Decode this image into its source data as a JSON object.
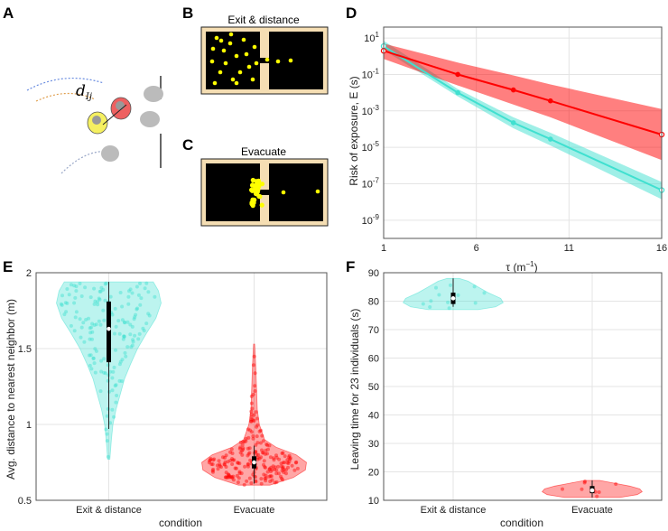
{
  "figure": {
    "panel_labels": {
      "A": "A",
      "B": "B",
      "C": "C",
      "D": "D",
      "E": "E",
      "F": "F"
    },
    "colors": {
      "exit": "#40E0D0",
      "evac": "#FF0000",
      "arena_floor": "#000000",
      "arena_wall": "#F5DEB3",
      "agent": "#FFFF00"
    },
    "panel_a": {
      "distance_label_main": "d",
      "distance_label_sub": "Ij"
    },
    "panel_b": {
      "title": "Exit & distance"
    },
    "panel_c": {
      "title": "Evacuate"
    }
  },
  "chart_data": [
    {
      "id": "D",
      "type": "line",
      "ylog": true,
      "xlabel_main": "τ (m",
      "xlabel_sup": "−1",
      "xlabel_end": ")",
      "ylabel": "Risk of exposure, E (s)",
      "xlim": [
        1,
        16
      ],
      "xticks": [
        1,
        6,
        11,
        16
      ],
      "ylim_exp": [
        -10,
        1.6
      ],
      "yticks_exp": [
        1,
        -1,
        -3,
        -5,
        -7,
        -9
      ],
      "ytick_base": "10",
      "series": [
        {
          "name": "Exit & distance",
          "color": "#40E0D0",
          "x": [
            1,
            5,
            8,
            10,
            16
          ],
          "log10_mean": [
            0.55,
            -2.0,
            -3.65,
            -4.55,
            -7.35
          ],
          "log10_lower": [
            0.35,
            -2.2,
            -3.95,
            -4.9,
            -7.85
          ],
          "log10_upper": [
            0.85,
            -1.8,
            -3.35,
            -4.2,
            -6.9
          ]
        },
        {
          "name": "Evacuate",
          "color": "#FF0000",
          "x": [
            1,
            5,
            8,
            10,
            16
          ],
          "log10_mean": [
            0.3,
            -1.0,
            -1.85,
            -2.45,
            -4.3
          ],
          "log10_lower": [
            -0.15,
            -1.6,
            -2.65,
            -3.35,
            -5.7
          ],
          "log10_upper": [
            0.7,
            -0.35,
            -1.05,
            -1.55,
            -2.9
          ]
        }
      ]
    },
    {
      "id": "E",
      "type": "violin",
      "xlabel": "condition",
      "ylabel": "Avg. distance to nearest neighbor (m)",
      "ylim": [
        0.5,
        2.0
      ],
      "yticks": [
        0.5,
        1,
        1.5,
        2
      ],
      "ytick_labels": [
        "0.5",
        "1",
        "1.5",
        "2"
      ],
      "categories": [
        "Exit & distance",
        "Evacuate"
      ],
      "groups": [
        {
          "name": "Exit & distance",
          "color": "#40E0D0",
          "median": 1.63,
          "q1": 1.41,
          "q3": 1.81,
          "min": 0.77,
          "max": 1.94,
          "whisker_min": 0.97,
          "whisker_max": 1.94,
          "n_points": 160,
          "density": [
            [
              0.77,
              0.02
            ],
            [
              0.9,
              0.05
            ],
            [
              1.0,
              0.08
            ],
            [
              1.1,
              0.14
            ],
            [
              1.2,
              0.22
            ],
            [
              1.3,
              0.3
            ],
            [
              1.4,
              0.42
            ],
            [
              1.5,
              0.55
            ],
            [
              1.6,
              0.72
            ],
            [
              1.7,
              0.9
            ],
            [
              1.8,
              1.0
            ],
            [
              1.88,
              0.95
            ],
            [
              1.94,
              0.85
            ]
          ]
        },
        {
          "name": "Evacuate",
          "color": "#FF0000",
          "median": 0.75,
          "q1": 0.71,
          "q3": 0.79,
          "min": 0.6,
          "max": 1.53,
          "whisker_min": 0.61,
          "whisker_max": 0.86,
          "n_points": 220,
          "density": [
            [
              0.6,
              0.3
            ],
            [
              0.65,
              0.75
            ],
            [
              0.7,
              0.98
            ],
            [
              0.75,
              1.0
            ],
            [
              0.8,
              0.8
            ],
            [
              0.85,
              0.42
            ],
            [
              0.9,
              0.2
            ],
            [
              1.0,
              0.1
            ],
            [
              1.1,
              0.06
            ],
            [
              1.2,
              0.05
            ],
            [
              1.3,
              0.04
            ],
            [
              1.4,
              0.03
            ],
            [
              1.53,
              0.01
            ]
          ]
        }
      ]
    },
    {
      "id": "F",
      "type": "violin",
      "xlabel": "condition",
      "ylabel": "Leaving time for 23 individuals (s)",
      "ylim": [
        10,
        90
      ],
      "yticks": [
        10,
        20,
        30,
        40,
        50,
        60,
        70,
        80,
        90
      ],
      "ytick_labels": [
        "10",
        "20",
        "30",
        "40",
        "50",
        "60",
        "70",
        "80",
        "90"
      ],
      "categories": [
        "Exit & distance",
        "Evacuate"
      ],
      "groups": [
        {
          "name": "Exit & distance",
          "color": "#40E0D0",
          "median": 81,
          "q1": 79,
          "q3": 83,
          "min": 77,
          "max": 88,
          "whisker_min": 78,
          "whisker_max": 88,
          "n_points": 12,
          "density": [
            [
              77,
              0.5
            ],
            [
              78,
              0.85
            ],
            [
              79.5,
              1.0
            ],
            [
              81,
              0.95
            ],
            [
              83,
              0.7
            ],
            [
              85,
              0.5
            ],
            [
              87,
              0.3
            ],
            [
              88,
              0.12
            ]
          ]
        },
        {
          "name": "Evacuate",
          "color": "#FF0000",
          "median": 13.5,
          "q1": 12.5,
          "q3": 15,
          "min": 11,
          "max": 17,
          "whisker_min": 11,
          "whisker_max": 17,
          "n_points": 10,
          "density": [
            [
              11,
              0.55
            ],
            [
              12,
              0.9
            ],
            [
              13,
              1.0
            ],
            [
              14,
              0.95
            ],
            [
              15,
              0.75
            ],
            [
              16,
              0.45
            ],
            [
              17,
              0.15
            ]
          ]
        }
      ]
    }
  ]
}
